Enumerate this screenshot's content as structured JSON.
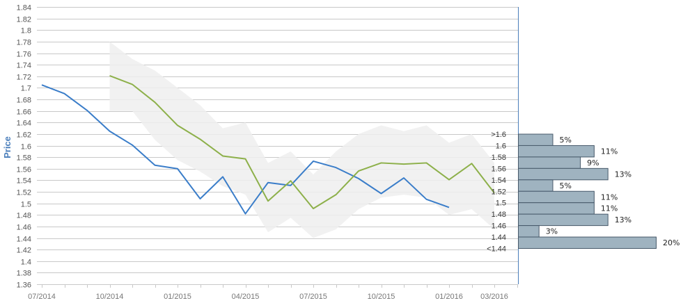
{
  "chart_data": {
    "type": "line",
    "ylabel": "Price",
    "ylim": [
      1.36,
      1.84
    ],
    "y_ticks": [
      "1.36",
      "1.38",
      "1.4",
      "1.42",
      "1.44",
      "1.46",
      "1.48",
      "1.5",
      "1.52",
      "1.54",
      "1.56",
      "1.58",
      "1.6",
      "1.62",
      "1.64",
      "1.66",
      "1.68",
      "1.7",
      "1.72",
      "1.74",
      "1.76",
      "1.78",
      "1.8",
      "1.82",
      "1.84"
    ],
    "x_ticks": [
      "07/2014",
      "10/2014",
      "01/2015",
      "04/2015",
      "07/2015",
      "10/2015",
      "01/2016",
      "03/2016"
    ],
    "grid": true,
    "colors": {
      "blue": "#3a7dc9",
      "green": "#8db04a",
      "band": "#eeeeee",
      "hist_bar": "#9fb3c0",
      "hist_edge": "#47596a"
    },
    "series": [
      {
        "x": [
          "07/2014",
          "08/2014",
          "09/2014",
          "10/2014",
          "11/2014",
          "12/2014",
          "01/2015",
          "02/2015",
          "03/2015",
          "04/2015",
          "05/2015",
          "06/2015",
          "07/2015",
          "08/2015",
          "09/2015",
          "10/2015",
          "11/2015",
          "12/2015",
          "01/2016"
        ],
        "values": [
          1.705,
          1.69,
          1.661,
          1.625,
          1.601,
          1.566,
          1.56,
          1.508,
          1.546,
          1.482,
          1.536,
          1.531,
          1.573,
          1.562,
          1.543,
          1.517,
          1.544,
          1.507,
          1.493
        ]
      },
      {
        "x": [
          "10/2014",
          "11/2014",
          "12/2014",
          "01/2015",
          "02/2015",
          "03/2015",
          "04/2015",
          "05/2015",
          "06/2015",
          "07/2015",
          "08/2015",
          "09/2015",
          "10/2015",
          "11/2015",
          "12/2015",
          "01/2016",
          "02/2016",
          "03/2016"
        ],
        "values": [
          1.721,
          1.706,
          1.675,
          1.635,
          1.611,
          1.582,
          1.577,
          1.504,
          1.539,
          1.491,
          1.515,
          1.556,
          1.57,
          1.568,
          1.57,
          1.541,
          1.569,
          1.518
        ]
      }
    ],
    "band": {
      "x": [
        "10/2014",
        "11/2014",
        "12/2014",
        "01/2015",
        "02/2015",
        "03/2015",
        "04/2015",
        "05/2015",
        "06/2015",
        "07/2015",
        "08/2015",
        "09/2015",
        "10/2015",
        "11/2015",
        "12/2015",
        "01/2016",
        "02/2016",
        "03/2016"
      ],
      "upper": [
        1.78,
        1.75,
        1.73,
        1.7,
        1.67,
        1.63,
        1.64,
        1.57,
        1.59,
        1.55,
        1.59,
        1.62,
        1.635,
        1.625,
        1.635,
        1.605,
        1.62,
        1.57
      ],
      "lower": [
        1.66,
        1.66,
        1.61,
        1.575,
        1.555,
        1.53,
        1.515,
        1.45,
        1.475,
        1.44,
        1.455,
        1.49,
        1.51,
        1.515,
        1.51,
        1.48,
        1.49,
        1.455
      ]
    },
    "histogram": {
      "bins": [
        {
          "label": ">1.6",
          "pct": "5%",
          "value": 5
        },
        {
          "label": "1.6",
          "pct": "11%",
          "value": 11
        },
        {
          "label": "1.58",
          "pct": "9%",
          "value": 9
        },
        {
          "label": "1.56",
          "pct": "13%",
          "value": 13
        },
        {
          "label": "1.54",
          "pct": "5%",
          "value": 5
        },
        {
          "label": "1.52",
          "pct": "11%",
          "value": 11
        },
        {
          "label": "1.5",
          "pct": "11%",
          "value": 11
        },
        {
          "label": "1.48",
          "pct": "13%",
          "value": 13
        },
        {
          "label": "1.46",
          "pct": "3%",
          "value": 3
        },
        {
          "label": "1.44",
          "pct": "20%",
          "value": 20
        },
        {
          "label": "<1.44",
          "pct": "",
          "value": 0
        }
      ],
      "max_value": 20
    }
  }
}
